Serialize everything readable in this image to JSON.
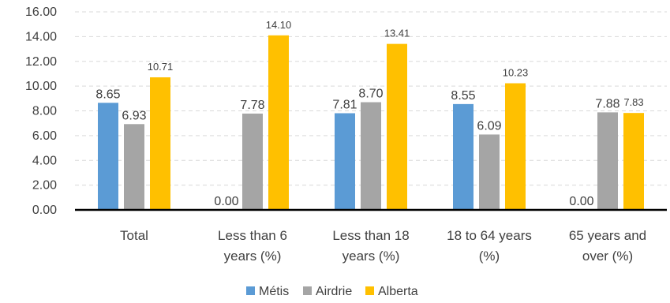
{
  "chart_data": {
    "type": "bar",
    "title": "",
    "xlabel": "",
    "ylabel": "",
    "ylim": [
      0,
      16
    ],
    "yticks": [
      "0.00",
      "2.00",
      "4.00",
      "6.00",
      "8.00",
      "10.00",
      "12.00",
      "14.00",
      "16.00"
    ],
    "grid": "horizontal dashed",
    "legend_position": "bottom",
    "categories": [
      [
        "Total"
      ],
      [
        "Less than 6",
        "years (%)"
      ],
      [
        "Less than 18",
        "years (%)"
      ],
      [
        "18 to 64 years",
        "(%)"
      ],
      [
        "65 years and",
        "over (%)"
      ]
    ],
    "series": [
      {
        "name": "Métis",
        "color": "#5B9BD5",
        "values": [
          8.65,
          0.0,
          7.81,
          8.55,
          0.0
        ],
        "labels": [
          "8.65",
          "0.00",
          "7.81",
          "8.55",
          "0.00"
        ]
      },
      {
        "name": "Airdrie",
        "color": "#A5A5A5",
        "values": [
          6.93,
          7.78,
          8.7,
          6.09,
          7.88
        ],
        "labels": [
          "6.93",
          "7.78",
          "8.70",
          "6.09",
          "7.88"
        ]
      },
      {
        "name": "Alberta",
        "color": "#FFC000",
        "values": [
          10.71,
          14.1,
          13.41,
          10.23,
          7.83
        ],
        "labels": [
          "10.71",
          "14.10",
          "13.41",
          "10.23",
          "7.83"
        ]
      }
    ]
  }
}
